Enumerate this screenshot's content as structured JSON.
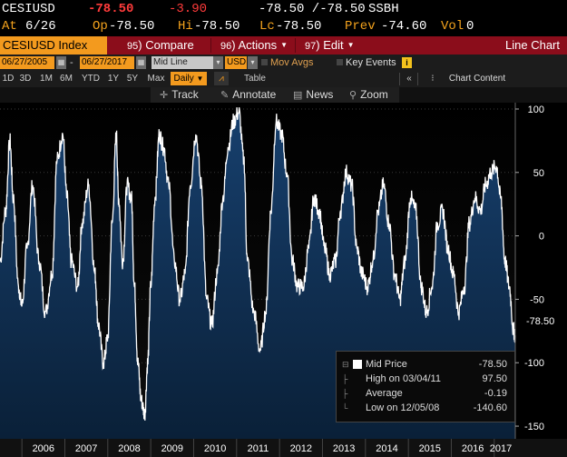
{
  "ticker": {
    "symbol": "CESIUSD",
    "last": "-78.50",
    "change": "-3.90",
    "bid_ask": "-78.50 /-78.50",
    "source": "SSBH"
  },
  "quote": {
    "at_label": "At",
    "at_value": "6/26",
    "open_label": "Op",
    "open_value": "-78.50",
    "high_label": "Hi",
    "high_value": "-78.50",
    "low_label": "Lc",
    "low_value": "-78.50",
    "prev_label": "Prev",
    "prev_value": "-74.60",
    "vol_label": "Vol",
    "vol_value": "0"
  },
  "toolbar": {
    "security": "CESIUSD Index",
    "compare_num": "95",
    "compare_label": "Compare",
    "actions_num": "96",
    "actions_label": "Actions",
    "edit_num": "97",
    "edit_label": "Edit",
    "view_title": "Line Chart"
  },
  "range": {
    "start": "06/27/2005",
    "end": "06/27/2017",
    "price_type": "Mid Line",
    "currency": "USD",
    "mov_avgs": "Mov Avgs",
    "key_events": "Key Events",
    "info_icon": "i"
  },
  "periods": {
    "items": [
      "1D",
      "3D",
      "1M",
      "6M",
      "YTD",
      "1Y",
      "5Y",
      "Max"
    ],
    "frequency": "Daily",
    "table": "Table",
    "chart_content": "Chart Content"
  },
  "tools": {
    "track": "Track",
    "annotate": "Annotate",
    "news": "News",
    "zoom": "Zoom"
  },
  "legend": {
    "series": "Mid Price",
    "series_value": "-78.50",
    "high_label": "High on 03/04/11",
    "high_value": "97.50",
    "avg_label": "Average",
    "avg_value": "-0.19",
    "low_label": "Low on 12/05/08",
    "low_value": "-140.60"
  },
  "last_label": "-78.50",
  "colors": {
    "accent": "#f39a1e",
    "function_bar": "#8b0d1b",
    "negative": "#ff3b3b",
    "area_fill": "#0f2a4a"
  },
  "chart_data": {
    "type": "area",
    "ylim": [
      -160,
      105
    ],
    "yticks": [
      100,
      50,
      0,
      -50,
      -100,
      -150
    ],
    "xticks": [
      "2006",
      "2007",
      "2008",
      "2009",
      "2010",
      "2011",
      "2012",
      "2013",
      "2014",
      "2015",
      "2016",
      "2017"
    ],
    "xlim": [
      2005.49,
      2017.49
    ],
    "series": [
      {
        "name": "Mid Price",
        "x": [
          2005.49,
          2005.62,
          2005.72,
          2005.8,
          2005.92,
          2006.0,
          2006.12,
          2006.25,
          2006.4,
          2006.55,
          2006.7,
          2006.82,
          2006.95,
          2007.05,
          2007.15,
          2007.3,
          2007.4,
          2007.55,
          2007.7,
          2007.78,
          2007.9,
          2008.0,
          2008.1,
          2008.2,
          2008.25,
          2008.35,
          2008.45,
          2008.55,
          2008.62,
          2008.7,
          2008.78,
          2008.86,
          2008.93,
          2009.0,
          2009.1,
          2009.2,
          2009.3,
          2009.42,
          2009.55,
          2009.68,
          2009.8,
          2009.92,
          2010.05,
          2010.18,
          2010.3,
          2010.42,
          2010.55,
          2010.68,
          2010.8,
          2010.93,
          2011.05,
          2011.17,
          2011.25,
          2011.4,
          2011.55,
          2011.68,
          2011.8,
          2011.92,
          2012.05,
          2012.17,
          2012.3,
          2012.42,
          2012.55,
          2012.68,
          2012.8,
          2012.92,
          2013.05,
          2013.17,
          2013.3,
          2013.42,
          2013.55,
          2013.68,
          2013.8,
          2013.92,
          2014.05,
          2014.17,
          2014.3,
          2014.42,
          2014.55,
          2014.68,
          2014.8,
          2014.92,
          2015.05,
          2015.17,
          2015.3,
          2015.42,
          2015.55,
          2015.68,
          2015.8,
          2015.92,
          2016.05,
          2016.17,
          2016.3,
          2016.42,
          2016.55,
          2016.68,
          2016.8,
          2016.92,
          2017.05,
          2017.15,
          2017.25,
          2017.35,
          2017.45,
          2017.49
        ],
        "y": [
          -20,
          20,
          75,
          30,
          -40,
          -55,
          -10,
          40,
          -20,
          -60,
          -30,
          60,
          80,
          30,
          -20,
          -40,
          10,
          40,
          -30,
          -70,
          -100,
          -80,
          10,
          80,
          30,
          -20,
          40,
          30,
          -40,
          -100,
          -130,
          -140,
          -100,
          -40,
          30,
          80,
          70,
          40,
          -20,
          -50,
          -30,
          40,
          80,
          40,
          -50,
          -70,
          -30,
          30,
          70,
          90,
          97.5,
          60,
          -20,
          -60,
          -90,
          -60,
          20,
          90,
          80,
          50,
          -20,
          -40,
          -40,
          -10,
          30,
          20,
          -10,
          -30,
          -20,
          20,
          50,
          40,
          -10,
          -30,
          -40,
          -20,
          20,
          40,
          10,
          -30,
          -50,
          -20,
          30,
          20,
          -40,
          -60,
          -40,
          10,
          20,
          -10,
          -30,
          -60,
          -40,
          10,
          30,
          20,
          40,
          50,
          55,
          30,
          -20,
          -40,
          -74.6,
          -78.5
        ]
      }
    ]
  }
}
